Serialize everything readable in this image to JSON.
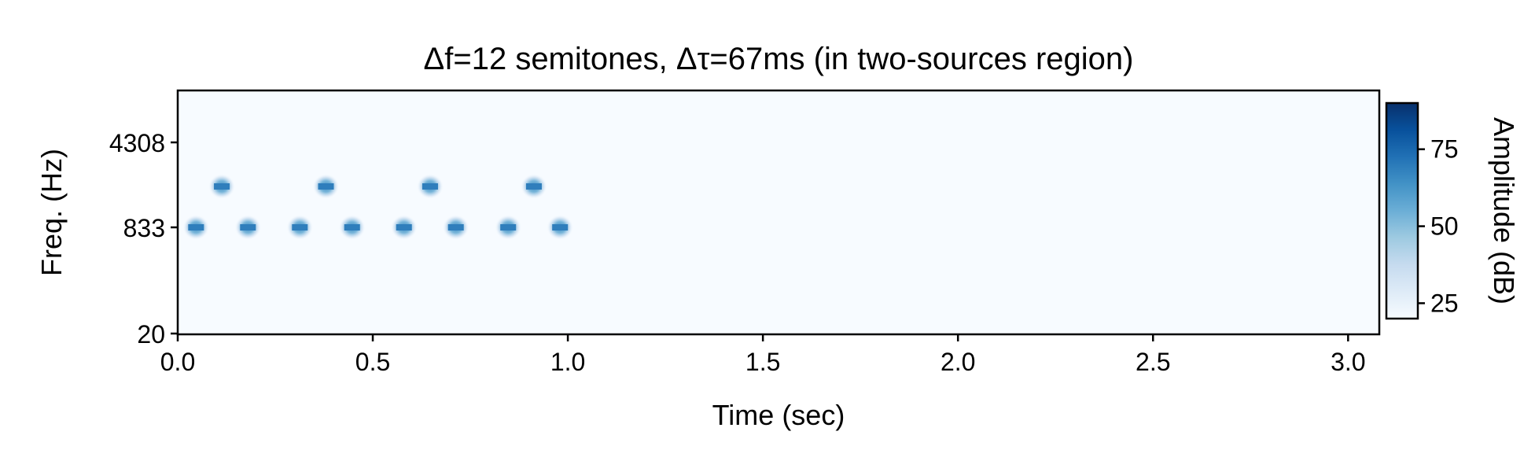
{
  "chart_data": {
    "type": "heatmap",
    "title": "Δf=12 semitones, Δτ=67ms (in two-sources region)",
    "xlabel": "Time (sec)",
    "ylabel": "Freq. (Hz)",
    "x_ticks": [
      "0.0",
      "0.5",
      "1.0",
      "1.5",
      "2.0",
      "2.5",
      "3.0"
    ],
    "y_ticks": [
      "20",
      "833",
      "4308"
    ],
    "xlim": [
      0,
      3.08
    ],
    "colorbar": {
      "label": "Amplitude (dB)",
      "ticks": [
        "25",
        "50",
        "75"
      ],
      "range": [
        20,
        90
      ],
      "colormap": [
        "#f7fbff",
        "#deebf7",
        "#c6dbef",
        "#9ecae1",
        "#6baed6",
        "#4292c6",
        "#2171b5",
        "#08519c",
        "#08306b"
      ]
    },
    "background_db": 20,
    "tones": [
      {
        "time": 0.047,
        "freq_band": "low",
        "peak_db": 60
      },
      {
        "time": 0.113,
        "freq_band": "high",
        "peak_db": 60
      },
      {
        "time": 0.18,
        "freq_band": "low",
        "peak_db": 60
      },
      {
        "time": 0.313,
        "freq_band": "low",
        "peak_db": 60
      },
      {
        "time": 0.38,
        "freq_band": "high",
        "peak_db": 60
      },
      {
        "time": 0.447,
        "freq_band": "low",
        "peak_db": 60
      },
      {
        "time": 0.58,
        "freq_band": "low",
        "peak_db": 60
      },
      {
        "time": 0.647,
        "freq_band": "high",
        "peak_db": 60
      },
      {
        "time": 0.713,
        "freq_band": "low",
        "peak_db": 60
      },
      {
        "time": 0.847,
        "freq_band": "low",
        "peak_db": 60
      },
      {
        "time": 0.913,
        "freq_band": "high",
        "peak_db": 60
      },
      {
        "time": 0.98,
        "freq_band": "low",
        "peak_db": 60
      }
    ]
  }
}
